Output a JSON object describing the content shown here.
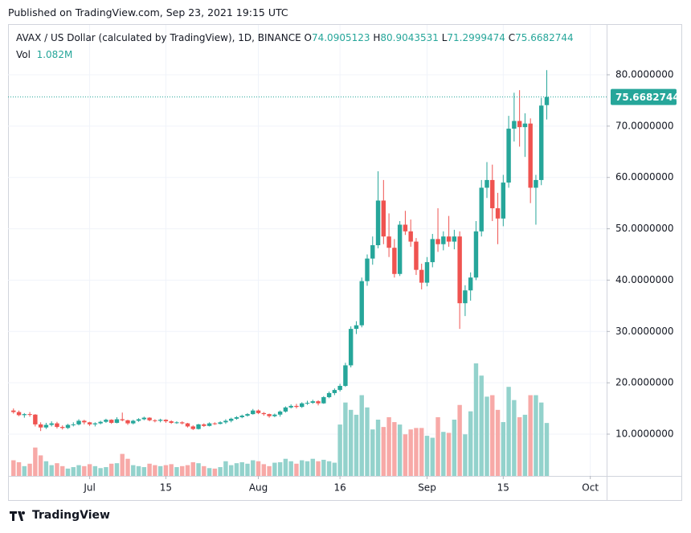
{
  "header": {
    "published": "Published on TradingView.com, Sep 23, 2021 19:15 UTC"
  },
  "footer": {
    "brand": "TradingView"
  },
  "chart_data": {
    "type": "candlestick",
    "title": "AVAX / US Dollar (calculated by TradingView), 1D, BINANCE",
    "ohlc_labels": [
      "O",
      "H",
      "L",
      "C"
    ],
    "up_color": "#26a69a",
    "down_color": "#ef5350",
    "x": [
      "2021-06-17",
      "2021-06-18",
      "2021-06-19",
      "2021-06-20",
      "2021-06-21",
      "2021-06-22",
      "2021-06-23",
      "2021-06-24",
      "2021-06-25",
      "2021-06-26",
      "2021-06-27",
      "2021-06-28",
      "2021-06-29",
      "2021-06-30",
      "2021-07-01",
      "2021-07-02",
      "2021-07-03",
      "2021-07-04",
      "2021-07-05",
      "2021-07-06",
      "2021-07-07",
      "2021-07-08",
      "2021-07-09",
      "2021-07-10",
      "2021-07-11",
      "2021-07-12",
      "2021-07-13",
      "2021-07-14",
      "2021-07-15",
      "2021-07-16",
      "2021-07-17",
      "2021-07-18",
      "2021-07-19",
      "2021-07-20",
      "2021-07-21",
      "2021-07-22",
      "2021-07-23",
      "2021-07-24",
      "2021-07-25",
      "2021-07-26",
      "2021-07-27",
      "2021-07-28",
      "2021-07-29",
      "2021-07-30",
      "2021-07-31",
      "2021-08-01",
      "2021-08-02",
      "2021-08-03",
      "2021-08-04",
      "2021-08-05",
      "2021-08-06",
      "2021-08-07",
      "2021-08-08",
      "2021-08-09",
      "2021-08-10",
      "2021-08-11",
      "2021-08-12",
      "2021-08-13",
      "2021-08-14",
      "2021-08-15",
      "2021-08-16",
      "2021-08-17",
      "2021-08-18",
      "2021-08-19",
      "2021-08-20",
      "2021-08-21",
      "2021-08-22",
      "2021-08-23",
      "2021-08-24",
      "2021-08-25",
      "2021-08-26",
      "2021-08-27",
      "2021-08-28",
      "2021-08-29",
      "2021-08-30",
      "2021-08-31",
      "2021-09-01",
      "2021-09-02",
      "2021-09-03",
      "2021-09-04",
      "2021-09-05",
      "2021-09-06",
      "2021-09-07",
      "2021-09-08",
      "2021-09-09",
      "2021-09-10",
      "2021-09-11",
      "2021-09-12",
      "2021-09-13",
      "2021-09-14",
      "2021-09-15",
      "2021-09-16",
      "2021-09-17",
      "2021-09-18",
      "2021-09-19",
      "2021-09-20",
      "2021-09-21",
      "2021-09-22",
      "2021-09-23"
    ],
    "open": [
      14.6,
      14.3,
      13.7,
      13.9,
      13.8,
      11.9,
      11.3,
      11.8,
      12.1,
      11.4,
      11.2,
      11.8,
      11.9,
      12.6,
      12.3,
      11.9,
      12.1,
      12.4,
      12.8,
      12.2,
      12.9,
      12.7,
      12.1,
      12.6,
      12.9,
      13.2,
      12.7,
      12.6,
      12.8,
      12.5,
      12.2,
      12.3,
      12.1,
      11.5,
      11.0,
      11.9,
      11.6,
      12.1,
      12.0,
      12.3,
      12.6,
      13.0,
      13.3,
      13.6,
      13.9,
      14.6,
      14.1,
      13.9,
      13.5,
      13.8,
      14.4,
      15.2,
      15.5,
      15.3,
      16.0,
      16.1,
      16.4,
      16.0,
      17.2,
      18.0,
      18.6,
      19.4,
      23.4,
      30.5,
      31.2,
      39.8,
      44.2,
      46.8,
      55.5,
      48.5,
      46.3,
      41.2,
      50.8,
      49.5,
      47.5,
      42.0,
      39.5,
      43.5,
      48.0,
      47.0,
      48.5,
      47.5,
      48.5,
      35.5,
      38.0,
      40.5,
      49.5,
      58.0,
      59.5,
      54.0,
      52.0,
      59.0,
      69.5,
      71.0,
      69.8,
      70.5,
      58.0,
      59.5,
      74.0905123
    ],
    "high": [
      15.0,
      14.6,
      14.1,
      14.3,
      13.9,
      12.3,
      12.2,
      12.5,
      12.4,
      11.7,
      12.0,
      12.3,
      12.9,
      12.8,
      12.4,
      12.3,
      12.6,
      13.0,
      12.9,
      13.3,
      14.2,
      12.8,
      12.8,
      13.1,
      13.4,
      13.3,
      12.9,
      13.0,
      12.9,
      12.7,
      12.5,
      12.5,
      12.2,
      11.7,
      12.0,
      12.1,
      12.3,
      12.3,
      12.5,
      12.9,
      13.2,
      13.5,
      13.8,
      14.1,
      14.9,
      14.8,
      14.3,
      14.0,
      14.0,
      14.6,
      15.4,
      15.8,
      15.9,
      16.2,
      16.5,
      16.7,
      16.6,
      17.4,
      18.3,
      18.9,
      19.8,
      23.9,
      31.0,
      32.0,
      40.5,
      45.0,
      48.5,
      61.2,
      59.5,
      53.0,
      48.0,
      51.5,
      53.5,
      51.8,
      48.2,
      43.2,
      44.5,
      49.0,
      54.0,
      49.5,
      52.5,
      49.8,
      49.5,
      39.0,
      41.5,
      51.5,
      59.5,
      63.0,
      62.5,
      57.0,
      60.5,
      72.0,
      76.5,
      77.0,
      72.5,
      71.5,
      60.5,
      75.5,
      80.9043531
    ],
    "low": [
      14.0,
      13.5,
      13.2,
      13.4,
      11.5,
      10.6,
      11.0,
      11.5,
      11.1,
      10.9,
      11.0,
      11.5,
      11.7,
      11.9,
      11.6,
      11.5,
      11.9,
      12.2,
      12.0,
      12.1,
      12.5,
      11.8,
      11.9,
      12.4,
      12.7,
      12.5,
      12.3,
      12.3,
      12.2,
      12.0,
      12.0,
      11.9,
      11.3,
      10.8,
      10.9,
      11.4,
      11.5,
      11.8,
      11.9,
      12.0,
      12.3,
      12.8,
      13.1,
      13.4,
      13.8,
      13.9,
      13.6,
      13.2,
      13.3,
      13.4,
      14.2,
      15.0,
      15.0,
      15.1,
      15.7,
      15.9,
      15.6,
      15.9,
      17.0,
      17.6,
      18.3,
      19.2,
      23.0,
      29.5,
      30.8,
      38.9,
      43.0,
      46.2,
      47.0,
      44.5,
      40.5,
      40.8,
      48.8,
      46.5,
      41.0,
      38.2,
      38.8,
      42.5,
      45.5,
      45.8,
      46.5,
      46.0,
      30.5,
      33.0,
      36.0,
      40.0,
      48.5,
      56.0,
      51.5,
      47.0,
      50.5,
      58.0,
      67.0,
      66.0,
      64.0,
      55.0,
      50.8,
      58.5,
      71.2999474
    ],
    "close": [
      14.3,
      13.7,
      13.9,
      13.8,
      11.9,
      11.3,
      11.8,
      12.1,
      11.4,
      11.2,
      11.8,
      11.9,
      12.6,
      12.3,
      11.9,
      12.1,
      12.4,
      12.8,
      12.2,
      12.9,
      12.7,
      12.1,
      12.6,
      12.9,
      13.2,
      12.7,
      12.6,
      12.8,
      12.5,
      12.2,
      12.3,
      12.1,
      11.5,
      11.0,
      11.9,
      11.6,
      12.1,
      12.0,
      12.3,
      12.6,
      13.0,
      13.3,
      13.6,
      13.9,
      14.6,
      14.1,
      13.9,
      13.5,
      13.8,
      14.4,
      15.2,
      15.5,
      15.3,
      16.0,
      16.1,
      16.4,
      16.0,
      17.2,
      18.0,
      18.6,
      19.4,
      23.4,
      30.5,
      31.2,
      39.8,
      44.2,
      46.8,
      55.5,
      48.5,
      46.3,
      41.2,
      50.8,
      49.5,
      47.5,
      42.0,
      39.5,
      43.5,
      48.0,
      47.0,
      48.5,
      47.5,
      48.5,
      35.5,
      38.0,
      40.5,
      49.5,
      58.0,
      59.5,
      54.0,
      52.0,
      59.0,
      69.5,
      71.0,
      69.8,
      70.5,
      58.0,
      59.5,
      74.0,
      75.6682744
    ],
    "volume": {
      "name": "Vol",
      "last_value_label": "1.082M",
      "up_color": "#93d2cc",
      "down_color": "#f7a9a7",
      "values": [
        0.32,
        0.28,
        0.2,
        0.25,
        0.58,
        0.42,
        0.3,
        0.22,
        0.26,
        0.2,
        0.15,
        0.18,
        0.22,
        0.2,
        0.24,
        0.2,
        0.16,
        0.18,
        0.25,
        0.26,
        0.45,
        0.35,
        0.22,
        0.2,
        0.18,
        0.25,
        0.22,
        0.2,
        0.22,
        0.24,
        0.18,
        0.2,
        0.22,
        0.28,
        0.26,
        0.2,
        0.16,
        0.15,
        0.18,
        0.3,
        0.22,
        0.26,
        0.28,
        0.25,
        0.32,
        0.3,
        0.24,
        0.2,
        0.27,
        0.28,
        0.35,
        0.3,
        0.25,
        0.32,
        0.3,
        0.35,
        0.3,
        0.33,
        0.3,
        0.27,
        1.05,
        1.5,
        1.35,
        1.25,
        1.65,
        1.4,
        0.95,
        1.15,
        1.0,
        1.2,
        1.1,
        1.05,
        0.85,
        0.95,
        0.98,
        0.98,
        0.82,
        0.78,
        1.2,
        0.9,
        0.88,
        1.15,
        1.45,
        0.85,
        1.32,
        2.3,
        2.05,
        1.62,
        1.65,
        1.35,
        1.1,
        1.82,
        1.55,
        1.2,
        1.25,
        1.65,
        1.65,
        1.5,
        1.082
      ]
    },
    "xlim": [
      "2021-06-16",
      "2021-10-04"
    ],
    "xticks": [
      {
        "value": "2021-07-01",
        "label": "Jul"
      },
      {
        "value": "2021-07-15",
        "label": "15"
      },
      {
        "value": "2021-08-01",
        "label": "Aug"
      },
      {
        "value": "2021-08-16",
        "label": "16"
      },
      {
        "value": "2021-09-01",
        "label": "Sep"
      },
      {
        "value": "2021-09-15",
        "label": "15"
      },
      {
        "value": "2021-10-01",
        "label": "Oct"
      }
    ],
    "ylim": [
      1.86,
      89.71
    ],
    "yticks": [
      {
        "value": 10,
        "label": "10.0000000"
      },
      {
        "value": 20,
        "label": "20.0000000"
      },
      {
        "value": 30,
        "label": "30.0000000"
      },
      {
        "value": 40,
        "label": "40.0000000"
      },
      {
        "value": 50,
        "label": "50.0000000"
      },
      {
        "value": 60,
        "label": "60.0000000"
      },
      {
        "value": 70,
        "label": "70.0000000"
      },
      {
        "value": 80,
        "label": "80.0000000"
      }
    ],
    "grid": true,
    "last_price_line": true
  }
}
